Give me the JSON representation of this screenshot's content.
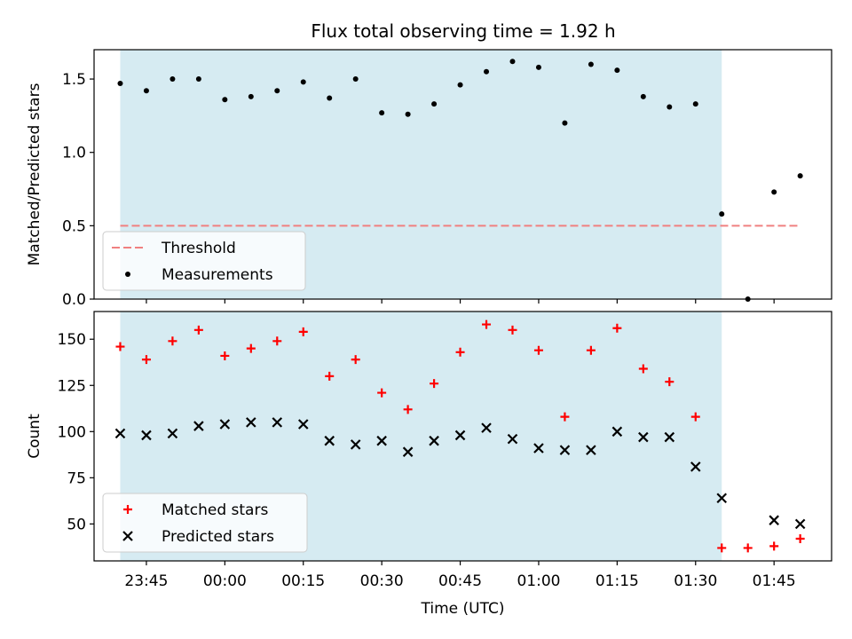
{
  "title": "Flux total observing time = 1.92 h",
  "colors": {
    "shade": "#add8e6",
    "threshold": "#f08080",
    "measurements": "#000000",
    "matched": "#ff0000",
    "predicted": "#000000"
  },
  "chart_data": [
    {
      "type": "scatter",
      "ylabel": "Matched/Predicted stars",
      "xlim": [
        "23:35",
        "01:56"
      ],
      "ylim": [
        0,
        1.7
      ],
      "yticks": [
        0.0,
        0.5,
        1.0,
        1.5
      ],
      "ytick_labels": [
        "0.0",
        "0.5",
        "1.0",
        "1.5"
      ],
      "shaded_region": [
        "23:40",
        "01:35"
      ],
      "legend_placement": "lower-left",
      "threshold": {
        "name": "Threshold",
        "value": 0.5,
        "x_range": [
          "23:40",
          "01:50"
        ]
      },
      "series": [
        {
          "name": "Measurements",
          "x": [
            "23:40",
            "23:45",
            "23:50",
            "23:55",
            "00:00",
            "00:05",
            "00:10",
            "00:15",
            "00:20",
            "00:25",
            "00:30",
            "00:35",
            "00:40",
            "00:45",
            "00:50",
            "00:55",
            "01:00",
            "01:05",
            "01:10",
            "01:15",
            "01:20",
            "01:25",
            "01:30",
            "01:35",
            "01:40",
            "01:45",
            "01:50"
          ],
          "y": [
            1.47,
            1.42,
            1.5,
            1.5,
            1.36,
            1.38,
            1.42,
            1.48,
            1.37,
            1.5,
            1.27,
            1.26,
            1.33,
            1.46,
            1.55,
            1.62,
            1.58,
            1.2,
            1.6,
            1.56,
            1.38,
            1.31,
            1.33,
            0.58,
            0.0,
            0.73,
            0.84
          ]
        }
      ]
    },
    {
      "type": "scatter",
      "ylabel": "Count",
      "xlabel": "Time (UTC)",
      "xlim": [
        "23:35",
        "01:56"
      ],
      "ylim": [
        30,
        165
      ],
      "yticks": [
        50,
        75,
        100,
        125,
        150
      ],
      "ytick_labels": [
        "50",
        "75",
        "100",
        "125",
        "150"
      ],
      "xticks": [
        "23:45",
        "00:00",
        "00:15",
        "00:30",
        "00:45",
        "01:00",
        "01:15",
        "01:30",
        "01:45"
      ],
      "shaded_region": [
        "23:40",
        "01:35"
      ],
      "legend_placement": "lower-left",
      "series": [
        {
          "name": "Matched stars",
          "marker": "plus",
          "x": [
            "23:40",
            "23:45",
            "23:50",
            "23:55",
            "00:00",
            "00:05",
            "00:10",
            "00:15",
            "00:20",
            "00:25",
            "00:30",
            "00:35",
            "00:40",
            "00:45",
            "00:50",
            "00:55",
            "01:00",
            "01:05",
            "01:10",
            "01:15",
            "01:20",
            "01:25",
            "01:30",
            "01:35",
            "01:40",
            "01:45",
            "01:50"
          ],
          "y": [
            146,
            139,
            149,
            155,
            141,
            145,
            149,
            154,
            130,
            139,
            121,
            112,
            126,
            143,
            158,
            155,
            144,
            108,
            144,
            156,
            134,
            127,
            108,
            37,
            37,
            38,
            42
          ]
        },
        {
          "name": "Predicted stars",
          "marker": "x",
          "x": [
            "23:40",
            "23:45",
            "23:50",
            "23:55",
            "00:00",
            "00:05",
            "00:10",
            "00:15",
            "00:20",
            "00:25",
            "00:30",
            "00:35",
            "00:40",
            "00:45",
            "00:50",
            "00:55",
            "01:00",
            "01:05",
            "01:10",
            "01:15",
            "01:20",
            "01:25",
            "01:30",
            "01:35",
            "01:40",
            "01:45",
            "01:50"
          ],
          "y": [
            99,
            98,
            99,
            103,
            104,
            105,
            105,
            104,
            95,
            93,
            95,
            89,
            95,
            98,
            102,
            96,
            91,
            90,
            90,
            100,
            97,
            97,
            81,
            64,
            null,
            52,
            50
          ]
        }
      ]
    }
  ]
}
